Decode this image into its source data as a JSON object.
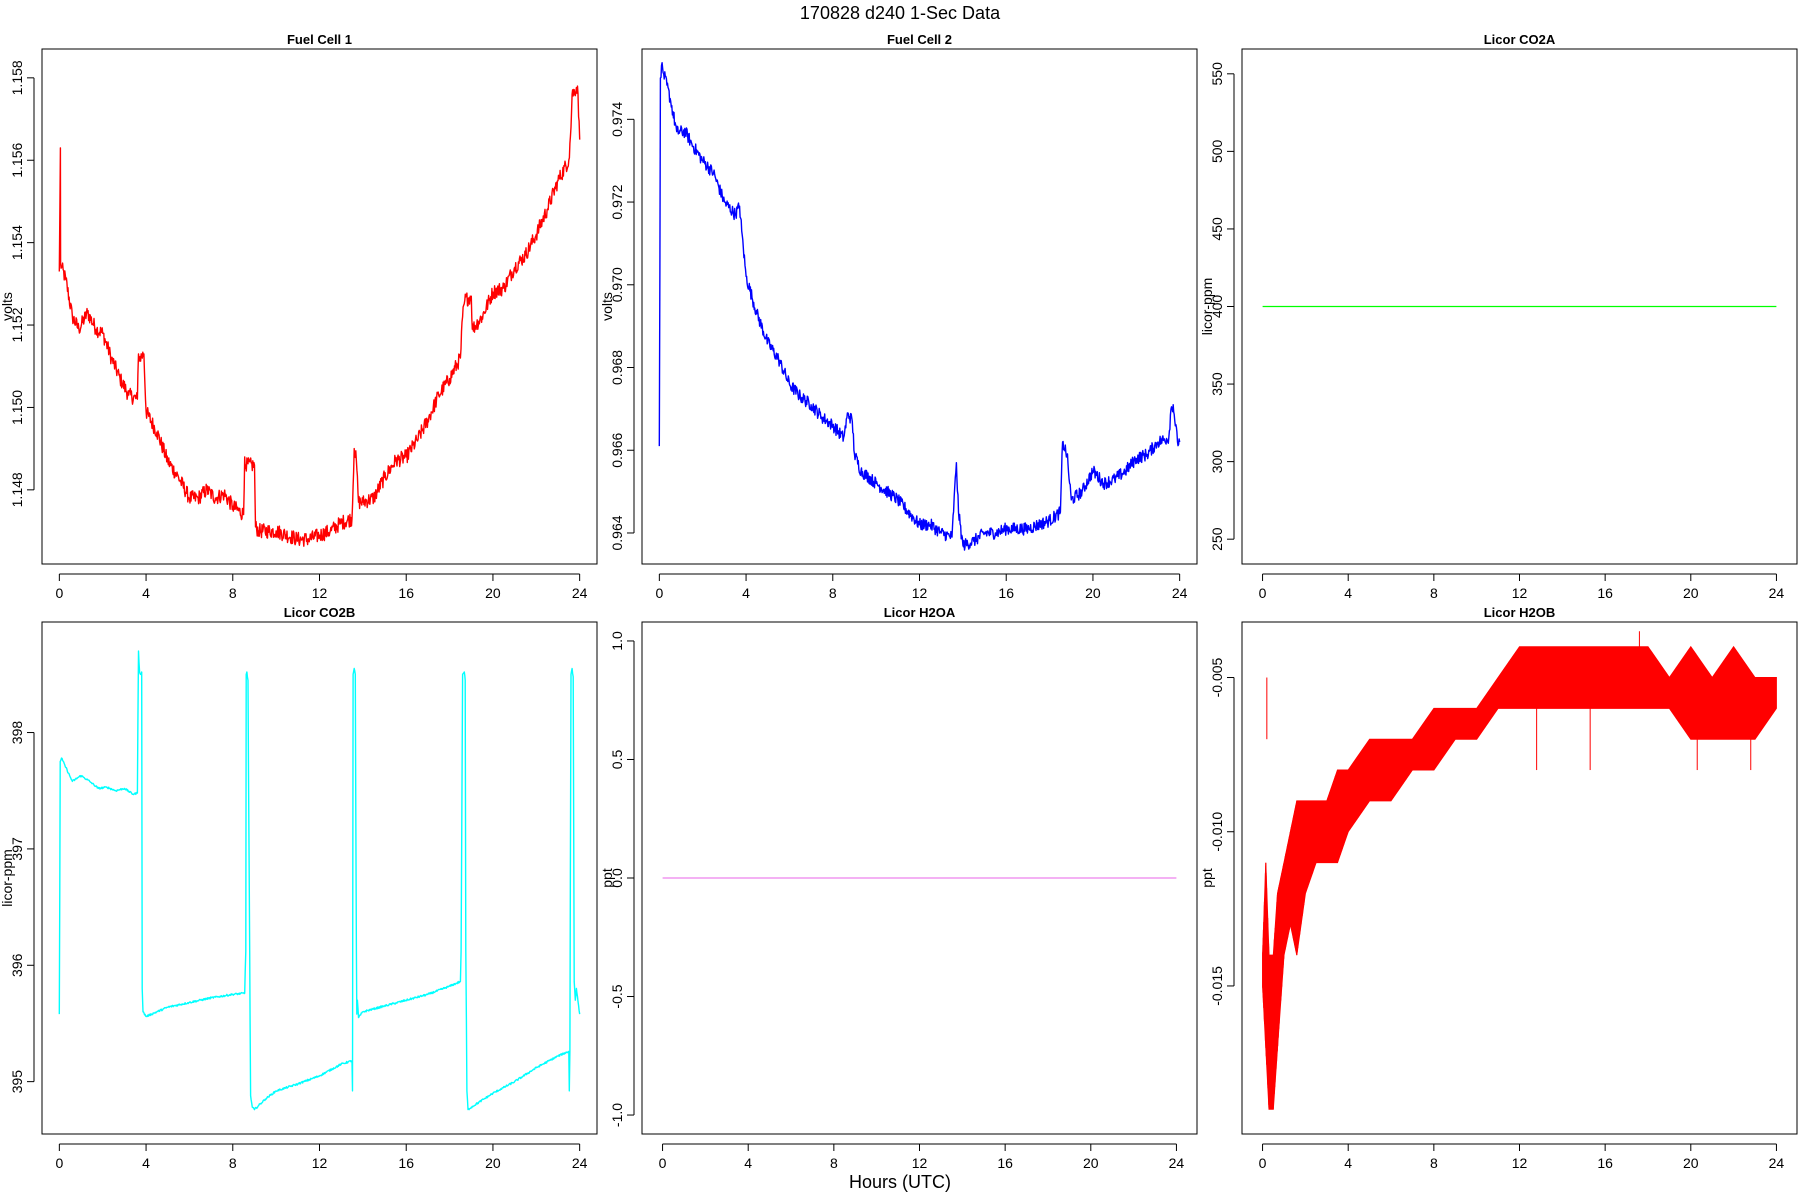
{
  "figure": {
    "title": "170828   d240   1-Sec Data",
    "xlabel": "Hours (UTC)"
  },
  "chart_data": [
    {
      "type": "line",
      "title": "Fuel Cell 1",
      "xlabel": "",
      "ylabel": "volts",
      "xlim": [
        -0.8,
        24.8
      ],
      "ylim": [
        1.1462,
        1.1587
      ],
      "x_ticks": [
        0,
        4,
        8,
        12,
        16,
        20,
        24
      ],
      "y_ticks": [
        1.148,
        1.15,
        1.152,
        1.154,
        1.156,
        1.158
      ],
      "y_tick_labels": [
        "1.148",
        "1.150",
        "1.152",
        "1.154",
        "1.156",
        "1.158"
      ],
      "color": "#ff0000",
      "noise": 0.00018,
      "series": [
        {
          "x": [
            0,
            0.05,
            0.06,
            0.1,
            0.3,
            0.6,
            0.9,
            1.3,
            1.7,
            2.0,
            2.4,
            2.8,
            3.2,
            3.6,
            3.65,
            3.7,
            3.9,
            4.0,
            4.5,
            5.0,
            5.5,
            6.0,
            6.4,
            6.8,
            7.2,
            7.6,
            8.0,
            8.5,
            8.55,
            8.6,
            9.0,
            9.05,
            9.2,
            10.0,
            11.0,
            11.5,
            12.0,
            12.5,
            13.0,
            13.5,
            13.6,
            13.7,
            13.8,
            14.0,
            14.5,
            15.0,
            15.5,
            16.0,
            16.5,
            17.0,
            17.5,
            18.0,
            18.5,
            18.6,
            18.7,
            19.0,
            19.05,
            19.5,
            20.0,
            20.5,
            21.0,
            21.5,
            22.0,
            22.5,
            23.0,
            23.5,
            23.6,
            23.65,
            23.9,
            24.0
          ],
          "y": [
            1.1533,
            1.1563,
            1.1535,
            1.1534,
            1.1531,
            1.1522,
            1.1519,
            1.1523,
            1.1519,
            1.1518,
            1.1512,
            1.1507,
            1.1503,
            1.1502,
            1.1513,
            1.1512,
            1.1513,
            1.1499,
            1.1494,
            1.1487,
            1.1483,
            1.1478,
            1.1478,
            1.148,
            1.1478,
            1.1479,
            1.1476,
            1.1474,
            1.1488,
            1.1486,
            1.1486,
            1.1471,
            1.147,
            1.147,
            1.1468,
            1.1468,
            1.1469,
            1.147,
            1.1472,
            1.1473,
            1.149,
            1.1487,
            1.1477,
            1.1477,
            1.1478,
            1.1483,
            1.1487,
            1.1488,
            1.1492,
            1.1497,
            1.1503,
            1.1507,
            1.1512,
            1.1522,
            1.1526,
            1.1527,
            1.1519,
            1.1522,
            1.1528,
            1.1529,
            1.1534,
            1.1537,
            1.1542,
            1.1548,
            1.1555,
            1.156,
            1.1568,
            1.1576,
            1.1578,
            1.1565
          ]
        }
      ]
    },
    {
      "type": "line",
      "title": "Fuel Cell 2",
      "xlabel": "",
      "ylabel": "volts",
      "xlim": [
        -0.8,
        24.8
      ],
      "ylim": [
        0.96325,
        0.9757
      ],
      "x_ticks": [
        0,
        4,
        8,
        12,
        16,
        20,
        24
      ],
      "y_ticks": [
        0.964,
        0.966,
        0.968,
        0.97,
        0.972,
        0.974
      ],
      "y_tick_labels": [
        "0.964",
        "0.966",
        "0.968",
        "0.970",
        "0.972",
        "0.974"
      ],
      "color": "#0000ff",
      "noise": 0.00015,
      "series": [
        {
          "x": [
            0,
            0.05,
            0.1,
            0.2,
            0.5,
            0.8,
            1.2,
            1.5,
            2.0,
            2.5,
            3.0,
            3.5,
            3.7,
            3.8,
            4.0,
            4.5,
            5.0,
            5.5,
            6.0,
            6.5,
            7.0,
            7.5,
            8.0,
            8.5,
            8.7,
            8.9,
            9.0,
            9.3,
            10.0,
            11.0,
            12.0,
            12.5,
            13.0,
            13.5,
            13.7,
            13.8,
            14.0,
            14.5,
            15.0,
            15.5,
            16.0,
            17.0,
            18.0,
            18.5,
            18.6,
            18.8,
            19.0,
            19.5,
            20.0,
            20.5,
            21.0,
            21.5,
            22.0,
            22.5,
            23.0,
            23.5,
            23.6,
            23.7,
            23.9,
            24.0
          ],
          "y": [
            0.9661,
            0.975,
            0.9753,
            0.9751,
            0.9745,
            0.9737,
            0.9737,
            0.9734,
            0.973,
            0.9727,
            0.972,
            0.9717,
            0.9719,
            0.9713,
            0.9702,
            0.9693,
            0.9686,
            0.9682,
            0.9676,
            0.9673,
            0.9671,
            0.9668,
            0.9666,
            0.9663,
            0.9669,
            0.9667,
            0.9659,
            0.9655,
            0.9652,
            0.9648,
            0.9642,
            0.9642,
            0.964,
            0.9639,
            0.9657,
            0.9645,
            0.9637,
            0.9638,
            0.964,
            0.964,
            0.9641,
            0.9641,
            0.9643,
            0.9645,
            0.9662,
            0.9659,
            0.9648,
            0.965,
            0.9655,
            0.9652,
            0.9653,
            0.9655,
            0.9658,
            0.9659,
            0.9662,
            0.9663,
            0.967,
            0.9671,
            0.9662,
            0.9662
          ]
        }
      ]
    },
    {
      "type": "line",
      "title": "Licor CO2A",
      "xlabel": "",
      "ylabel": "licor-ppm",
      "xlim": [
        -0.96,
        24.96
      ],
      "ylim": [
        234,
        566
      ],
      "x_ticks": [
        0,
        4,
        8,
        12,
        16,
        20,
        24
      ],
      "y_ticks": [
        250,
        300,
        350,
        400,
        450,
        500,
        550
      ],
      "y_tick_labels": [
        "250",
        "300",
        "350",
        "400",
        "450",
        "500",
        "550"
      ],
      "color": "#00ff00",
      "noise": 0,
      "series": [
        {
          "x": [
            0,
            24
          ],
          "y": [
            400,
            400
          ]
        }
      ]
    },
    {
      "type": "line",
      "title": "Licor CO2B",
      "xlabel": "",
      "ylabel": "licor-ppm",
      "xlim": [
        -0.8,
        24.8
      ],
      "ylim": [
        394.55,
        398.95
      ],
      "x_ticks": [
        0,
        4,
        8,
        12,
        16,
        20,
        24
      ],
      "y_ticks": [
        395,
        396,
        397,
        398
      ],
      "y_tick_labels": [
        "395",
        "396",
        "397",
        "398"
      ],
      "color": "#00ffff",
      "noise": 0.008,
      "series": [
        {
          "x": [
            0,
            0.04,
            0.1,
            0.3,
            0.6,
            1.0,
            1.4,
            1.8,
            2.2,
            2.6,
            3.0,
            3.4,
            3.6,
            3.65,
            3.7,
            3.75,
            3.8,
            3.82,
            3.86,
            4.0,
            4.5,
            5.0,
            6.0,
            7.0,
            8.0,
            8.55,
            8.6,
            8.62,
            8.65,
            8.7,
            8.78,
            8.82,
            8.9,
            9.0,
            9.5,
            10.0,
            11.0,
            12.0,
            13.0,
            13.5,
            13.52,
            13.55,
            13.6,
            13.65,
            13.7,
            13.72,
            13.75,
            13.8,
            14.0,
            15.0,
            16.0,
            17.0,
            18.0,
            18.5,
            18.53,
            18.6,
            18.68,
            18.72,
            18.75,
            18.8,
            18.85,
            19.0,
            20.0,
            21.0,
            22.0,
            23.0,
            23.5,
            23.52,
            23.55,
            23.6,
            23.65,
            23.7,
            23.75,
            23.8,
            23.85,
            24.0
          ],
          "y": [
            395.58,
            397.75,
            397.78,
            397.7,
            397.58,
            397.63,
            397.58,
            397.52,
            397.53,
            397.5,
            397.52,
            397.47,
            397.48,
            398.7,
            398.52,
            398.5,
            398.52,
            395.8,
            395.6,
            395.56,
            395.6,
            395.64,
            395.68,
            395.72,
            395.75,
            395.76,
            396.12,
            398.5,
            398.52,
            398.45,
            396.12,
            394.88,
            394.78,
            394.76,
            394.85,
            394.92,
            394.98,
            395.05,
            395.15,
            395.18,
            394.92,
            398.5,
            398.55,
            398.5,
            396.12,
            395.58,
            395.7,
            395.55,
            395.6,
            395.65,
            395.7,
            395.75,
            395.82,
            395.86,
            396.12,
            398.5,
            398.52,
            398.45,
            396.12,
            394.92,
            394.76,
            394.78,
            394.9,
            395.0,
            395.12,
            395.22,
            395.26,
            394.92,
            395.26,
            398.5,
            398.55,
            398.48,
            395.86,
            395.7,
            395.8,
            395.58
          ]
        }
      ]
    },
    {
      "type": "line",
      "title": "Licor H2OA",
      "xlabel": "",
      "ylabel": "ppt",
      "xlim": [
        -0.96,
        24.96
      ],
      "ylim": [
        -1.08,
        1.08
      ],
      "x_ticks": [
        0,
        4,
        8,
        12,
        16,
        20,
        24
      ],
      "y_ticks": [
        -1.0,
        -0.5,
        0.0,
        0.5,
        1.0
      ],
      "y_tick_labels": [
        "-1.0",
        "-0.5",
        "0.0",
        "0.5",
        "1.0"
      ],
      "color": "#ee82ee",
      "noise": 0,
      "series": [
        {
          "x": [
            0,
            24
          ],
          "y": [
            0,
            0
          ]
        }
      ]
    },
    {
      "type": "line",
      "title": "Licor H2OB",
      "xlabel": "",
      "ylabel": "ppt",
      "xlim": [
        -0.96,
        24.96
      ],
      "ylim": [
        -0.0198,
        -0.0032
      ],
      "x_ticks": [
        0,
        4,
        8,
        12,
        16,
        20,
        24
      ],
      "y_ticks": [
        -0.015,
        -0.01,
        -0.005
      ],
      "y_tick_labels": [
        "-0.015",
        "-0.010",
        "-0.005"
      ],
      "color": "#ff0000",
      "noise": 0,
      "band": {
        "x": [
          0.0,
          0.15,
          0.3,
          0.5,
          0.7,
          1.0,
          1.3,
          1.6,
          2.0,
          2.5,
          3.0,
          3.5,
          4.0,
          5.0,
          6.0,
          7.0,
          8.0,
          9.0,
          10.0,
          11.0,
          12.0,
          13.0,
          14.0,
          15.0,
          16.0,
          17.0,
          18.0,
          19.0,
          20.0,
          21.0,
          22.0,
          23.0,
          24.0
        ],
        "lo": [
          -0.015,
          -0.017,
          -0.019,
          -0.019,
          -0.017,
          -0.014,
          -0.013,
          -0.014,
          -0.012,
          -0.011,
          -0.011,
          -0.011,
          -0.01,
          -0.009,
          -0.009,
          -0.008,
          -0.008,
          -0.007,
          -0.007,
          -0.006,
          -0.006,
          -0.006,
          -0.006,
          -0.006,
          -0.006,
          -0.006,
          -0.006,
          -0.006,
          -0.007,
          -0.007,
          -0.007,
          -0.007,
          -0.006
        ],
        "hi": [
          -0.014,
          -0.011,
          -0.014,
          -0.014,
          -0.012,
          -0.011,
          -0.01,
          -0.009,
          -0.009,
          -0.009,
          -0.009,
          -0.008,
          -0.008,
          -0.007,
          -0.007,
          -0.007,
          -0.006,
          -0.006,
          -0.006,
          -0.005,
          -0.004,
          -0.004,
          -0.004,
          -0.004,
          -0.004,
          -0.004,
          -0.004,
          -0.005,
          -0.004,
          -0.005,
          -0.004,
          -0.005,
          -0.005
        ]
      },
      "spikes": [
        {
          "x": 0.2,
          "y": -0.005
        },
        {
          "x": 12.8,
          "y": -0.006
        },
        {
          "x": 15.3,
          "y": -0.006
        },
        {
          "x": 17.6,
          "y": -0.0035
        },
        {
          "x": 20.3,
          "y": -0.006
        },
        {
          "x": 22.8,
          "y": -0.006
        }
      ]
    }
  ]
}
